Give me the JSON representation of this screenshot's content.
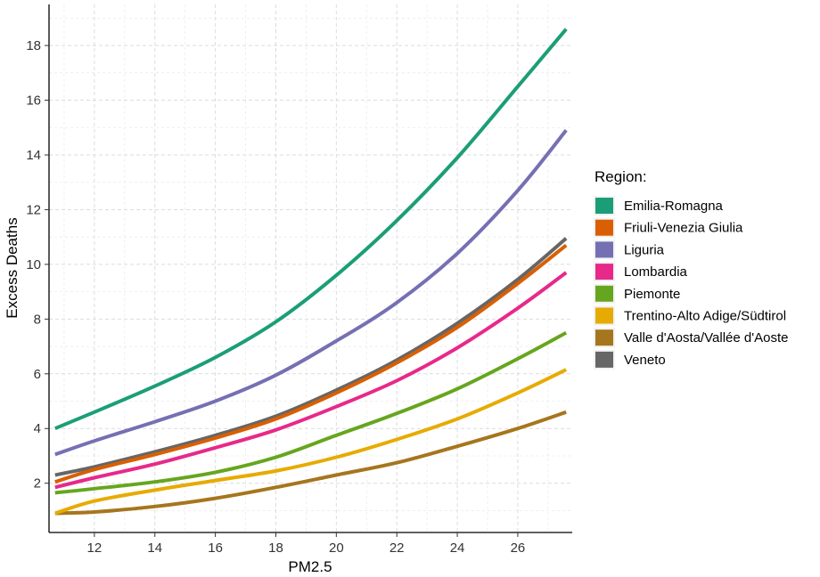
{
  "chart_data": {
    "type": "line",
    "xlabel": "PM2.5",
    "ylabel": "Excess Deaths",
    "xlim": [
      10.5,
      27.8
    ],
    "ylim": [
      0.2,
      19.5
    ],
    "xticks": [
      12,
      14,
      16,
      18,
      20,
      22,
      24,
      26
    ],
    "yticks": [
      2,
      4,
      6,
      8,
      10,
      12,
      14,
      16,
      18
    ],
    "grid": true,
    "legend_title": "Region:",
    "legend_position": "right",
    "x": [
      10.7,
      12,
      14,
      16,
      18,
      20,
      22,
      24,
      26,
      27.6
    ],
    "series": [
      {
        "name": "Emilia-Romagna",
        "color": "#1B9E77",
        "values": [
          4.0,
          4.6,
          5.55,
          6.6,
          7.9,
          9.6,
          11.6,
          13.9,
          16.5,
          18.6
        ]
      },
      {
        "name": "Friuli-Venezia Giulia",
        "color": "#D95F02",
        "values": [
          2.05,
          2.5,
          3.05,
          3.65,
          4.35,
          5.3,
          6.4,
          7.7,
          9.3,
          10.7
        ]
      },
      {
        "name": "Liguria",
        "color": "#7570B3",
        "values": [
          3.05,
          3.55,
          4.25,
          5.0,
          5.95,
          7.2,
          8.6,
          10.4,
          12.7,
          14.9
        ]
      },
      {
        "name": "Lombardia",
        "color": "#E7298A",
        "values": [
          1.85,
          2.2,
          2.7,
          3.3,
          3.95,
          4.8,
          5.75,
          6.95,
          8.4,
          9.7
        ]
      },
      {
        "name": "Piemonte",
        "color": "#66A61E",
        "values": [
          1.65,
          1.8,
          2.05,
          2.4,
          2.95,
          3.75,
          4.55,
          5.45,
          6.55,
          7.5
        ]
      },
      {
        "name": "Trentino-Alto Adige/Südtirol",
        "color": "#E6AB02",
        "values": [
          0.9,
          1.35,
          1.75,
          2.1,
          2.45,
          2.95,
          3.6,
          4.35,
          5.3,
          6.15
        ]
      },
      {
        "name": "Valle d'Aosta/Vallée d'Aoste",
        "color": "#A6761D",
        "values": [
          0.9,
          0.95,
          1.15,
          1.45,
          1.85,
          2.3,
          2.75,
          3.35,
          4.0,
          4.6
        ]
      },
      {
        "name": "Veneto",
        "color": "#666666",
        "values": [
          2.3,
          2.6,
          3.15,
          3.75,
          4.45,
          5.4,
          6.5,
          7.85,
          9.45,
          10.95
        ]
      }
    ]
  }
}
